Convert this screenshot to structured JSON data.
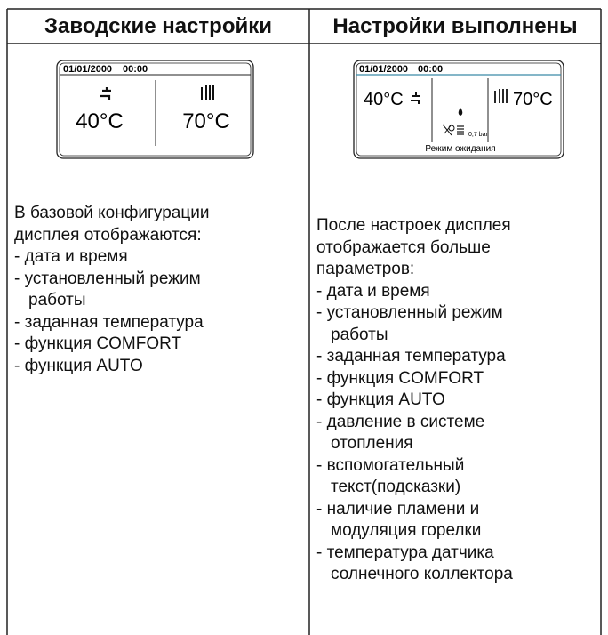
{
  "table": {
    "headers": [
      "Заводские настройки",
      "Настройки выполнены"
    ],
    "columns": [
      {
        "display": {
          "date": "01/01/2000",
          "time": "00:00",
          "dhw_temp": "40°C",
          "heating_temp": "70°C"
        },
        "intro": "В базовой конфигурации дисплея отображаются:",
        "items": [
          "дата и время",
          "установленный режим работы",
          "заданная температура",
          "функция COMFORT",
          "функция AUTO"
        ]
      },
      {
        "display": {
          "date": "01/01/2000",
          "time": "00:00",
          "dhw_temp": "40°C",
          "heating_temp": "70°C",
          "pressure": "0,7 bar",
          "status": "Режим ожидания"
        },
        "intro": "После настроек дисплея отображается больше параметров:",
        "items": [
          "дата и время",
          "установленный режим работы",
          "заданная температура",
          "функция COMFORT",
          "функция AUTO",
          "давление в системе отопления",
          "вспомогательный текст(подсказки)",
          "наличие пламени и модуляция горелки",
          "температура датчика солнечного коллектора"
        ]
      }
    ]
  }
}
